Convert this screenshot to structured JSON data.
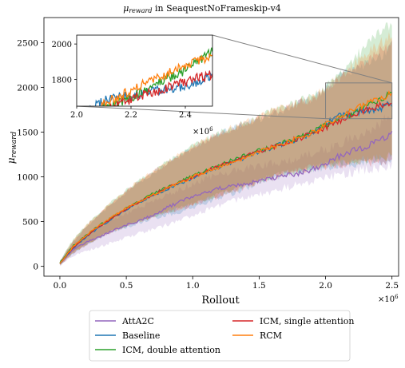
{
  "chart_data": {
    "type": "line",
    "title": "μ_reward in SeaquestNoFrameskip-v4",
    "title_main": "μ",
    "title_sub": "reward",
    "title_rest": " in SeaquestNoFrameskip-v4",
    "xlabel": "Rollout",
    "ylabel_main": "μ",
    "ylabel_sub": "reward",
    "x_multiplier": "×10",
    "x_multiplier_exp": "6",
    "xlim": [
      -0.12,
      2.55
    ],
    "ylim": [
      -110,
      2780
    ],
    "xticks": [
      0.0,
      0.5,
      1.0,
      1.5,
      2.0,
      2.5
    ],
    "xtick_labels": [
      "0.0",
      "0.5",
      "1.0",
      "1.5",
      "2.0",
      "2.5"
    ],
    "yticks": [
      0,
      500,
      1000,
      1500,
      2000,
      2500
    ],
    "ytick_labels": [
      "0",
      "500",
      "1000",
      "1500",
      "2000",
      "2500"
    ],
    "grid": false,
    "legend_position": "bottom-center",
    "series": [
      {
        "name": "AttA2C",
        "color": "#9467bd",
        "x": [
          0.0,
          0.1,
          0.2,
          0.3,
          0.4,
          0.5,
          0.6,
          0.7,
          0.8,
          0.9,
          1.0,
          1.1,
          1.2,
          1.3,
          1.4,
          1.5,
          1.6,
          1.7,
          1.8,
          1.9,
          2.0,
          2.1,
          2.2,
          2.3,
          2.4,
          2.5
        ],
        "y": [
          30,
          190,
          270,
          330,
          400,
          460,
          510,
          570,
          650,
          720,
          780,
          830,
          870,
          900,
          920,
          950,
          980,
          1010,
          1040,
          1080,
          1140,
          1230,
          1290,
          1330,
          1400,
          1480
        ],
        "lower": [
          10,
          120,
          170,
          220,
          270,
          320,
          370,
          410,
          460,
          510,
          560,
          620,
          680,
          730,
          760,
          800,
          840,
          880,
          920,
          950,
          990,
          1020,
          1050,
          1080,
          1100,
          1120
        ],
        "upper": [
          50,
          260,
          360,
          440,
          520,
          590,
          660,
          720,
          790,
          860,
          920,
          980,
          1030,
          1060,
          1090,
          1120,
          1150,
          1180,
          1210,
          1260,
          1310,
          1380,
          1430,
          1500,
          1600,
          1700
        ]
      },
      {
        "name": "Baseline",
        "color": "#1f77b4",
        "x": [
          0.0,
          0.1,
          0.2,
          0.3,
          0.4,
          0.5,
          0.6,
          0.7,
          0.8,
          0.9,
          1.0,
          1.1,
          1.2,
          1.3,
          1.4,
          1.5,
          1.6,
          1.7,
          1.8,
          1.9,
          2.0,
          2.1,
          2.2,
          2.3,
          2.4,
          2.5
        ],
        "y": [
          30,
          200,
          330,
          440,
          540,
          630,
          720,
          790,
          860,
          920,
          990,
          1050,
          1110,
          1160,
          1220,
          1280,
          1330,
          1380,
          1420,
          1490,
          1600,
          1680,
          1710,
          1740,
          1760,
          1820
        ],
        "lower": [
          10,
          140,
          240,
          320,
          390,
          440,
          490,
          530,
          570,
          610,
          660,
          710,
          760,
          810,
          870,
          930,
          980,
          1020,
          1060,
          1090,
          1110,
          1130,
          1150,
          1160,
          1170,
          1180
        ],
        "upper": [
          60,
          280,
          440,
          580,
          710,
          830,
          940,
          1040,
          1140,
          1230,
          1320,
          1400,
          1480,
          1540,
          1590,
          1650,
          1710,
          1760,
          1820,
          1880,
          1990,
          2120,
          2200,
          2270,
          2350,
          2450
        ]
      },
      {
        "name": "ICM, double attention",
        "color": "#2ca02c",
        "x": [
          0.0,
          0.1,
          0.2,
          0.3,
          0.4,
          0.5,
          0.6,
          0.7,
          0.8,
          0.9,
          1.0,
          1.1,
          1.2,
          1.3,
          1.4,
          1.5,
          1.6,
          1.7,
          1.8,
          1.9,
          2.0,
          2.1,
          2.2,
          2.3,
          2.4,
          2.5
        ],
        "y": [
          40,
          230,
          350,
          460,
          560,
          650,
          730,
          810,
          880,
          940,
          1010,
          1070,
          1130,
          1190,
          1240,
          1290,
          1340,
          1390,
          1440,
          1500,
          1580,
          1640,
          1700,
          1780,
          1850,
          1960
        ],
        "lower": [
          20,
          160,
          250,
          330,
          400,
          450,
          500,
          550,
          600,
          650,
          690,
          740,
          800,
          860,
          910,
          960,
          1000,
          1040,
          1070,
          1100,
          1120,
          1140,
          1160,
          1180,
          1200,
          1230
        ],
        "upper": [
          60,
          300,
          460,
          600,
          730,
          850,
          960,
          1060,
          1160,
          1250,
          1340,
          1420,
          1490,
          1560,
          1620,
          1680,
          1740,
          1790,
          1840,
          1900,
          2000,
          2150,
          2300,
          2450,
          2600,
          2700
        ]
      },
      {
        "name": "ICM, single attention",
        "color": "#d62728",
        "x": [
          0.0,
          0.1,
          0.2,
          0.3,
          0.4,
          0.5,
          0.6,
          0.7,
          0.8,
          0.9,
          1.0,
          1.1,
          1.2,
          1.3,
          1.4,
          1.5,
          1.6,
          1.7,
          1.8,
          1.9,
          2.0,
          2.1,
          2.2,
          2.3,
          2.4,
          2.5
        ],
        "y": [
          30,
          210,
          340,
          450,
          550,
          640,
          720,
          800,
          870,
          930,
          1000,
          1060,
          1120,
          1170,
          1230,
          1280,
          1330,
          1380,
          1430,
          1480,
          1550,
          1620,
          1690,
          1740,
          1790,
          1830
        ],
        "lower": [
          10,
          150,
          240,
          320,
          390,
          450,
          500,
          550,
          600,
          640,
          690,
          740,
          790,
          840,
          890,
          940,
          990,
          1030,
          1070,
          1100,
          1120,
          1140,
          1150,
          1160,
          1170,
          1180
        ],
        "upper": [
          50,
          280,
          450,
          590,
          720,
          840,
          950,
          1050,
          1150,
          1240,
          1330,
          1410,
          1480,
          1540,
          1600,
          1660,
          1720,
          1770,
          1820,
          1880,
          1970,
          2100,
          2200,
          2300,
          2400,
          2480
        ]
      },
      {
        "name": "RCM",
        "color": "#ff7f0e",
        "x": [
          0.0,
          0.1,
          0.2,
          0.3,
          0.4,
          0.5,
          0.6,
          0.7,
          0.8,
          0.9,
          1.0,
          1.1,
          1.2,
          1.3,
          1.4,
          1.5,
          1.6,
          1.7,
          1.8,
          1.9,
          2.0,
          2.1,
          2.2,
          2.3,
          2.4,
          2.5
        ],
        "y": [
          30,
          220,
          350,
          460,
          560,
          650,
          730,
          800,
          870,
          930,
          1000,
          1060,
          1110,
          1170,
          1220,
          1280,
          1330,
          1380,
          1430,
          1490,
          1580,
          1660,
          1740,
          1810,
          1880,
          1930
        ],
        "lower": [
          10,
          150,
          250,
          330,
          400,
          460,
          510,
          560,
          610,
          650,
          700,
          750,
          800,
          850,
          900,
          950,
          990,
          1030,
          1070,
          1100,
          1130,
          1150,
          1170,
          1190,
          1210,
          1230
        ],
        "upper": [
          50,
          290,
          460,
          600,
          730,
          850,
          960,
          1060,
          1160,
          1250,
          1340,
          1420,
          1490,
          1550,
          1610,
          1670,
          1730,
          1780,
          1830,
          1890,
          1990,
          2120,
          2240,
          2360,
          2480,
          2580
        ]
      }
    ],
    "inset": {
      "xlim": [
        2.0,
        2.5
      ],
      "ylim": [
        1650,
        2050
      ],
      "xticks": [
        2.0,
        2.2,
        2.4
      ],
      "xtick_labels": [
        "2.0",
        "2.2",
        "2.4"
      ],
      "yticks": [
        1800,
        2000
      ],
      "ytick_labels": [
        "1800",
        "2000"
      ],
      "x_multiplier": "×10",
      "x_multiplier_exp": "6"
    },
    "zoom_box": {
      "x": [
        2.0,
        2.5
      ],
      "y": [
        1650,
        2050
      ]
    }
  }
}
